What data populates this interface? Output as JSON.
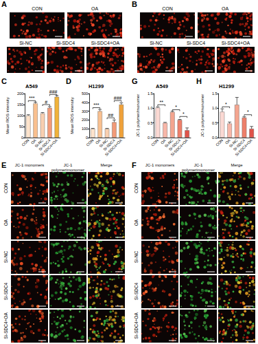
{
  "panels": {
    "A": {
      "label": "A",
      "images": [
        "CON",
        "OA",
        "Si-NC",
        "Si-SDC4",
        "Si-SDC4+OA"
      ]
    },
    "B": {
      "label": "B",
      "images": [
        "CON",
        "OA",
        "Si-NC",
        "Si-SDC4",
        "Si-SDC4+OA"
      ]
    },
    "E": {
      "label": "E",
      "columns": [
        "JC-1 monomers",
        "JC-1 polymerimonomer",
        "Merge"
      ],
      "rows": [
        "CON",
        "OA",
        "Si-NC",
        "Si-SDC4",
        "Si-SDC4+OA"
      ]
    },
    "F": {
      "label": "F",
      "columns": [
        "JC-1 monomers",
        "JC-1 polymerimonomer",
        "Merge"
      ],
      "rows": [
        "CON",
        "OA",
        "Si-NC",
        "Si-SDC4",
        "Si-SDC4+OA"
      ]
    }
  },
  "chart_data": [
    {
      "panel": "C",
      "type": "bar",
      "title": "A549",
      "y_label": "Mean ROS intensity",
      "categories": [
        "CON",
        "OA",
        "Si-NC",
        "Si-SDC4",
        "Si-SDC4+OA"
      ],
      "values": [
        100,
        155,
        110,
        135,
        185
      ],
      "errors": [
        4,
        6,
        4,
        6,
        6
      ],
      "colors": [
        "#fde3cc",
        "#f9c08f",
        "#f8cfb0",
        "#f29a78",
        "#f0b23a"
      ],
      "ylim": [
        0,
        200
      ],
      "yticks": [
        0,
        50,
        100,
        150,
        200
      ],
      "grid": false,
      "annotations": [
        {
          "text": "***",
          "from": "CON",
          "to": "OA",
          "y": 168
        },
        {
          "text": "#",
          "from": "Si-NC",
          "to": "Si-SDC4",
          "y": 150
        },
        {
          "text": "###",
          "from": "Si-SDC4",
          "to": "Si-SDC4+OA",
          "y": 196
        }
      ]
    },
    {
      "panel": "D",
      "type": "bar",
      "title": "H1299",
      "y_label": "Mean ROS intensity",
      "categories": [
        "CON",
        "OA",
        "Si-NC",
        "Si-SDC4",
        "Si-SDC4+OA"
      ],
      "values": [
        100,
        300,
        100,
        175,
        375
      ],
      "errors": [
        5,
        20,
        5,
        25,
        20
      ],
      "colors": [
        "#fde3cc",
        "#f9c08f",
        "#f8cfb0",
        "#f29a78",
        "#f0a23a"
      ],
      "ylim": [
        0,
        500
      ],
      "yticks": [
        0,
        100,
        200,
        300,
        400,
        500
      ],
      "grid": false,
      "annotations": [
        {
          "text": "***",
          "from": "CON",
          "to": "OA",
          "y": 340
        },
        {
          "text": "##",
          "from": "Si-NC",
          "to": "Si-SDC4",
          "y": 225
        },
        {
          "text": "###",
          "from": "Si-SDC4",
          "to": "Si-SDC4+OA",
          "y": 420
        }
      ]
    },
    {
      "panel": "G",
      "type": "bar",
      "title": "A549",
      "y_label": "JC-1 polymer/monomer",
      "categories": [
        "CON",
        "OA",
        "Si-NC",
        "Si-SDC4",
        "Si-SDC4+OA"
      ],
      "values": [
        1.02,
        0.5,
        0.87,
        0.6,
        0.25
      ],
      "errors": [
        0.03,
        0.02,
        0.03,
        0.02,
        0.08
      ],
      "colors": [
        "#fbd9d3",
        "#f7b6a8",
        "#f4a58f",
        "#ee7f6a",
        "#e0534a"
      ],
      "ylim": [
        0,
        1.5
      ],
      "yticks": [
        {
          "value": 0,
          "label": "0.0"
        },
        {
          "value": 0.5,
          "label": "0.5"
        },
        {
          "value": 1,
          "label": "1.0"
        },
        {
          "value": 1.5,
          "label": "1.5"
        }
      ],
      "grid": false,
      "annotations": [
        {
          "text": "**",
          "from": "CON",
          "to": "OA",
          "y": 1.12
        },
        {
          "text": "*",
          "from": "Si-NC",
          "to": "Si-SDC4",
          "y": 0.95
        },
        {
          "text": "*",
          "from": "Si-SDC4",
          "to": "Si-SDC4+OA",
          "y": 0.72
        }
      ]
    },
    {
      "panel": "H",
      "type": "bar",
      "title": "H1299",
      "y_label": "JC-1 polymer/monomer",
      "categories": [
        "CON",
        "OA",
        "Si-NC",
        "Si-SDC4",
        "Si-SDC4+OA"
      ],
      "values": [
        0.88,
        0.48,
        1.12,
        0.68,
        0.3
      ],
      "errors": [
        0.1,
        0.05,
        0.25,
        0.03,
        0.08
      ],
      "colors": [
        "#fbd9d3",
        "#f7b6a8",
        "#f4a58f",
        "#ee7f6a",
        "#e0534a"
      ],
      "ylim": [
        0,
        1.5
      ],
      "yticks": [
        {
          "value": 0,
          "label": "0.0"
        },
        {
          "value": 0.5,
          "label": "0.5"
        },
        {
          "value": 1,
          "label": "1.0"
        },
        {
          "value": 1.5,
          "label": "1.5"
        }
      ],
      "grid": false,
      "annotations": [
        {
          "text": "*",
          "from": "CON",
          "to": "OA",
          "y": 1.05
        },
        {
          "text": "*",
          "from": "Si-SDC4",
          "to": "Si-SDC4+OA",
          "y": 0.78
        }
      ]
    }
  ]
}
